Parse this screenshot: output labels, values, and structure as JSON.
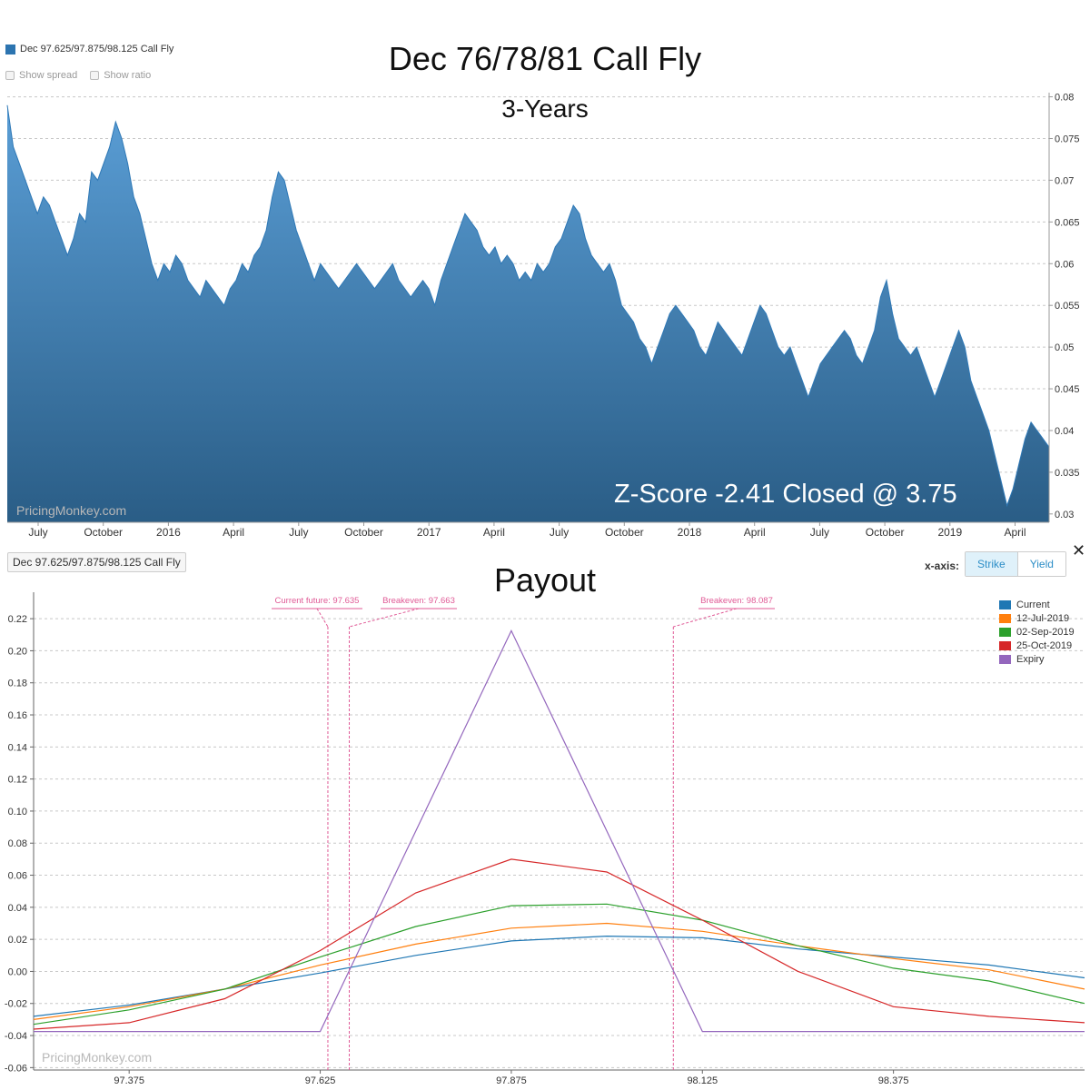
{
  "top_panel": {
    "legend_label": "Dec 97.625/97.875/98.125 Call Fly",
    "show_spread_label": "Show spread",
    "show_ratio_label": "Show ratio",
    "title": "Dec 76/78/81 Call Fly",
    "subtitle": "3-Years",
    "annotation": "Z-Score -2.41 Closed @ 3.75",
    "watermark": "PricingMonkey.com"
  },
  "bottom_panel": {
    "chip_label": "Dec 97.625/97.875/98.125 Call Fly",
    "title": "Payout",
    "xaxis_label": "x-axis:",
    "strike_label": "Strike",
    "yield_label": "Yield",
    "close_symbol": "✕",
    "watermark": "PricingMonkey.com"
  },
  "colors": {
    "area_top": "#5a9ed6",
    "area_bottom": "#2a5d86",
    "area_line": "#2e78b6",
    "marker": "#e05a96",
    "current": "#1f77b4",
    "jul": "#ff7f0e",
    "sep": "#2ca02c",
    "oct": "#d62728",
    "expiry": "#9467bd"
  },
  "chart_data": [
    {
      "type": "area",
      "series": [
        {
          "name": "Dec 97.625/97.875/98.125 Call Fly"
        }
      ],
      "x_tick_labels": [
        "July",
        "October",
        "2016",
        "April",
        "July",
        "October",
        "2017",
        "April",
        "July",
        "October",
        "2018",
        "April",
        "July",
        "October",
        "2019",
        "April"
      ],
      "y_ticks": [
        "0.03",
        "0.035",
        "0.04",
        "0.045",
        "0.05",
        "0.055",
        "0.06",
        "0.065",
        "0.07",
        "0.075",
        "0.08"
      ],
      "ylim": [
        0.029,
        0.0805
      ],
      "values": [
        0.079,
        0.074,
        0.072,
        0.07,
        0.068,
        0.066,
        0.068,
        0.067,
        0.065,
        0.063,
        0.061,
        0.063,
        0.066,
        0.065,
        0.071,
        0.07,
        0.072,
        0.074,
        0.077,
        0.075,
        0.072,
        0.068,
        0.066,
        0.063,
        0.06,
        0.058,
        0.06,
        0.059,
        0.061,
        0.06,
        0.058,
        0.057,
        0.056,
        0.058,
        0.057,
        0.056,
        0.055,
        0.057,
        0.058,
        0.06,
        0.059,
        0.061,
        0.062,
        0.064,
        0.068,
        0.071,
        0.07,
        0.067,
        0.064,
        0.062,
        0.06,
        0.058,
        0.06,
        0.059,
        0.058,
        0.057,
        0.058,
        0.059,
        0.06,
        0.059,
        0.058,
        0.057,
        0.058,
        0.059,
        0.06,
        0.058,
        0.057,
        0.056,
        0.057,
        0.058,
        0.057,
        0.055,
        0.058,
        0.06,
        0.062,
        0.064,
        0.066,
        0.065,
        0.064,
        0.062,
        0.061,
        0.062,
        0.06,
        0.061,
        0.06,
        0.058,
        0.059,
        0.058,
        0.06,
        0.059,
        0.06,
        0.062,
        0.063,
        0.065,
        0.067,
        0.066,
        0.063,
        0.061,
        0.06,
        0.059,
        0.06,
        0.058,
        0.055,
        0.054,
        0.053,
        0.051,
        0.05,
        0.048,
        0.05,
        0.052,
        0.054,
        0.055,
        0.054,
        0.053,
        0.052,
        0.05,
        0.049,
        0.051,
        0.053,
        0.052,
        0.051,
        0.05,
        0.049,
        0.051,
        0.053,
        0.055,
        0.054,
        0.052,
        0.05,
        0.049,
        0.05,
        0.048,
        0.046,
        0.044,
        0.046,
        0.048,
        0.049,
        0.05,
        0.051,
        0.052,
        0.051,
        0.049,
        0.048,
        0.05,
        0.052,
        0.056,
        0.058,
        0.054,
        0.051,
        0.05,
        0.049,
        0.05,
        0.048,
        0.046,
        0.044,
        0.046,
        0.048,
        0.05,
        0.052,
        0.05,
        0.046,
        0.044,
        0.042,
        0.04,
        0.037,
        0.034,
        0.031,
        0.033,
        0.036,
        0.039,
        0.041,
        0.04,
        0.039,
        0.038
      ],
      "ylabel": "",
      "xlabel": ""
    },
    {
      "type": "line",
      "x_ticks": [
        97.375,
        97.625,
        97.875,
        98.125,
        98.375
      ],
      "x_tick_labels": [
        "97.375",
        "97.625",
        "97.875",
        "98.125",
        "98.375"
      ],
      "xlim": [
        97.25,
        98.625
      ],
      "y_ticks": [
        -0.06,
        -0.04,
        -0.02,
        0.0,
        0.02,
        0.04,
        0.06,
        0.08,
        0.1,
        0.12,
        0.14,
        0.16,
        0.18,
        0.2,
        0.22
      ],
      "y_tick_labels": [
        "-0.06",
        "-0.04",
        "-0.02",
        "0.00",
        "0.02",
        "0.04",
        "0.06",
        "0.08",
        "0.10",
        "0.12",
        "0.14",
        "0.16",
        "0.18",
        "0.20",
        "0.22"
      ],
      "ylim": [
        -0.0615,
        0.2365
      ],
      "x": [
        97.25,
        97.375,
        97.5,
        97.625,
        97.75,
        97.875,
        98.0,
        98.125,
        98.25,
        98.375,
        98.5,
        98.625
      ],
      "series": [
        {
          "name": "Current",
          "color_key": "current",
          "values": [
            -0.028,
            -0.021,
            -0.011,
            -0.001,
            0.01,
            0.019,
            0.022,
            0.021,
            0.014,
            0.009,
            0.004,
            -0.004
          ]
        },
        {
          "name": "12-Jul-2019",
          "color_key": "jul",
          "values": [
            -0.03,
            -0.022,
            -0.011,
            0.004,
            0.017,
            0.027,
            0.03,
            0.025,
            0.016,
            0.008,
            0.001,
            -0.011
          ]
        },
        {
          "name": "02-Sep-2019",
          "color_key": "sep",
          "values": [
            -0.033,
            -0.024,
            -0.011,
            0.009,
            0.028,
            0.041,
            0.042,
            0.032,
            0.016,
            0.002,
            -0.006,
            -0.02
          ]
        },
        {
          "name": "25-Oct-2019",
          "color_key": "oct",
          "values": [
            -0.036,
            -0.032,
            -0.017,
            0.013,
            0.049,
            0.07,
            0.062,
            0.032,
            0.0,
            -0.022,
            -0.028,
            -0.032
          ]
        },
        {
          "name": "Expiry",
          "color_key": "expiry",
          "values": [
            -0.0375,
            -0.0375,
            -0.0375,
            -0.0375,
            0.0875,
            0.2125,
            0.0875,
            -0.0375,
            -0.0375,
            -0.0375,
            -0.0375,
            -0.0375
          ]
        }
      ],
      "markers": [
        {
          "label": "Current future: 97.635",
          "x": 97.635
        },
        {
          "label": "Breakeven: 97.663",
          "x": 97.663
        },
        {
          "label": "Breakeven: 98.087",
          "x": 98.087
        }
      ],
      "legend_position": "top-right",
      "grid": true,
      "ylabel": "",
      "xlabel": ""
    }
  ]
}
